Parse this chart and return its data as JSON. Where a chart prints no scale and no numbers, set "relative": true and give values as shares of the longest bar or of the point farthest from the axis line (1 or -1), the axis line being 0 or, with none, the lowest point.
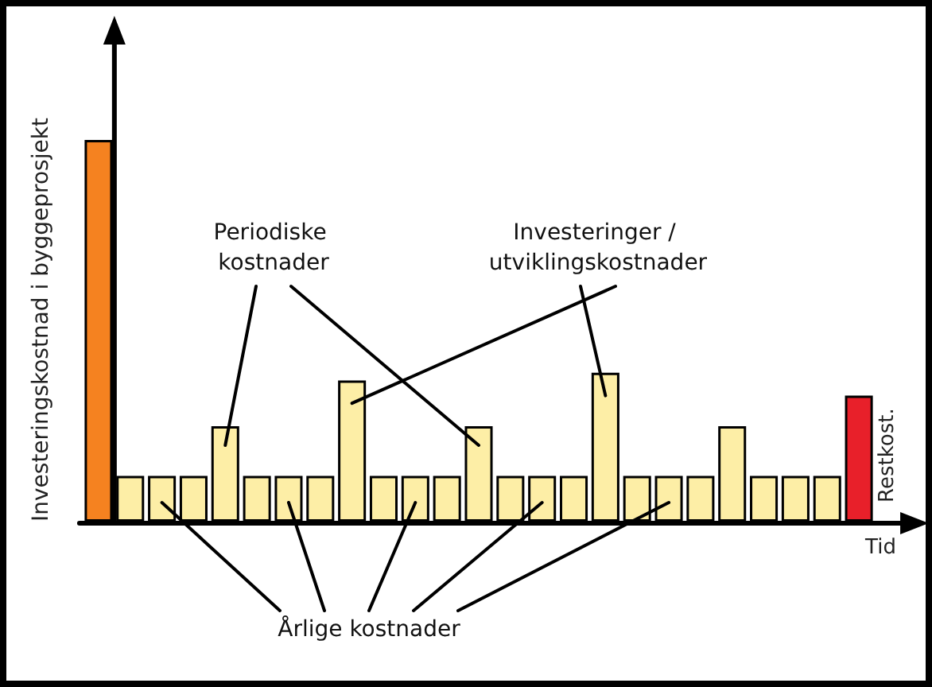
{
  "chart_data": {
    "type": "bar",
    "relative": true,
    "ylabel": "Investeringskostnad i byggeprosjekt",
    "xlabel": "Tid",
    "categories": [
      null,
      null,
      null,
      null,
      null,
      null,
      null,
      null,
      null,
      null,
      null,
      null,
      null,
      null,
      null,
      null,
      null,
      null,
      null,
      null,
      null,
      null,
      null,
      null,
      null
    ],
    "values": [
      1,
      0.12,
      0.12,
      0.12,
      0.25,
      0.12,
      0.12,
      0.12,
      0.37,
      0.12,
      0.12,
      0.12,
      0.25,
      0.12,
      0.12,
      0.12,
      0.39,
      0.12,
      0.12,
      0.12,
      0.25,
      0.12,
      0.12,
      0.12,
      0.33
    ],
    "colors": [
      "#f58220",
      "#fdeea6",
      "#fdeea6",
      "#fdeea6",
      "#fdeea6",
      "#fdeea6",
      "#fdeea6",
      "#fdeea6",
      "#fdeea6",
      "#fdeea6",
      "#fdeea6",
      "#fdeea6",
      "#fdeea6",
      "#fdeea6",
      "#fdeea6",
      "#fdeea6",
      "#fdeea6",
      "#fdeea6",
      "#fdeea6",
      "#fdeea6",
      "#fdeea6",
      "#fdeea6",
      "#fdeea6",
      "#fdeea6",
      "#e8202a"
    ],
    "annotations": [
      "Periodiske kostnader",
      "Investeringer / utviklingskostnader",
      "Årlige kostnader",
      "Restkost."
    ]
  }
}
